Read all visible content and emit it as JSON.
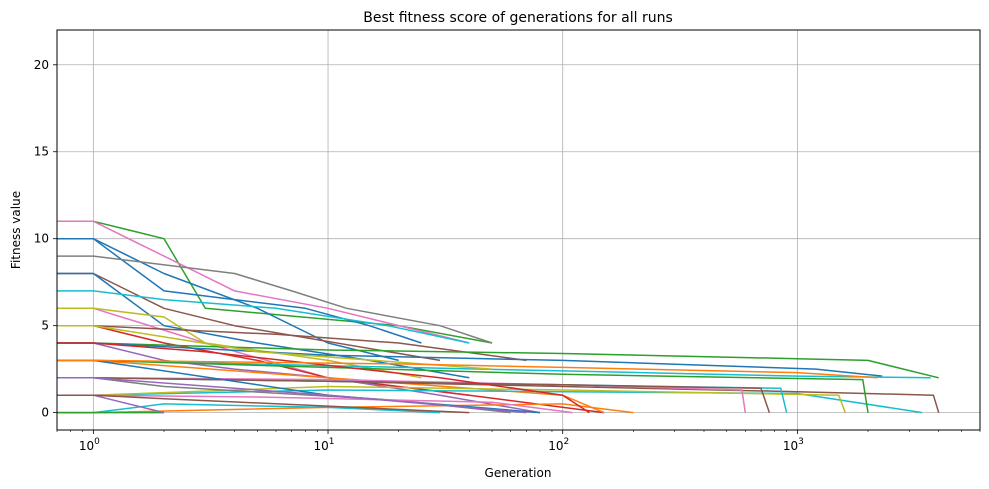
{
  "chart_data": {
    "type": "line",
    "title": "Best fitness score of generations for all runs",
    "xlabel": "Generation",
    "ylabel": "Fitness value",
    "xscale": "log",
    "xlim": [
      0.7,
      6000
    ],
    "ylim": [
      -1,
      22
    ],
    "x_ticks": [
      {
        "value": 1,
        "base": "10",
        "exp": "0"
      },
      {
        "value": 10,
        "base": "10",
        "exp": "1"
      },
      {
        "value": 100,
        "base": "10",
        "exp": "2"
      },
      {
        "value": 1000,
        "base": "10",
        "exp": "3"
      }
    ],
    "y_ticks": [
      0,
      5,
      10,
      15,
      20
    ],
    "grid": true,
    "series": [
      {
        "color": "#2ca02c",
        "x": [
          0.7,
          1,
          2,
          3,
          20,
          50
        ],
        "y": [
          11,
          11,
          10,
          6,
          5,
          4
        ]
      },
      {
        "color": "#e377c2",
        "x": [
          0.7,
          1,
          2,
          4,
          10,
          40
        ],
        "y": [
          11,
          11,
          9,
          7,
          6,
          4
        ]
      },
      {
        "color": "#1f77b4",
        "x": [
          0.7,
          1,
          2,
          5,
          10,
          20
        ],
        "y": [
          10,
          10,
          8,
          6,
          4,
          3
        ]
      },
      {
        "color": "#1f77b4",
        "x": [
          0.7,
          1,
          2,
          4,
          8,
          15,
          25
        ],
        "y": [
          10,
          10,
          7,
          6.5,
          6,
          5,
          4
        ]
      },
      {
        "color": "#7f7f7f",
        "x": [
          0.7,
          1,
          4,
          7,
          12,
          30,
          50
        ],
        "y": [
          9,
          9,
          8,
          7,
          6,
          5,
          4
        ]
      },
      {
        "color": "#8c564b",
        "x": [
          0.7,
          1,
          2,
          4,
          30
        ],
        "y": [
          8,
          8,
          6,
          5,
          3
        ]
      },
      {
        "color": "#1f77b4",
        "x": [
          0.7,
          1,
          2,
          5,
          15,
          40
        ],
        "y": [
          8,
          8,
          5,
          4,
          3,
          2
        ]
      },
      {
        "color": "#17becf",
        "x": [
          0.7,
          1,
          2,
          6,
          18,
          40
        ],
        "y": [
          7,
          7,
          6.5,
          6,
          5,
          4
        ]
      },
      {
        "color": "#e377c2",
        "x": [
          0.7,
          1,
          3,
          10,
          40
        ],
        "y": [
          6,
          6,
          4,
          2,
          1
        ]
      },
      {
        "color": "#bcbd22",
        "x": [
          0.7,
          1,
          2,
          3,
          10,
          25
        ],
        "y": [
          6,
          6,
          5.5,
          4,
          3,
          2
        ]
      },
      {
        "color": "#d62728",
        "x": [
          0.7,
          1,
          2,
          5,
          10,
          40,
          150
        ],
        "y": [
          5,
          5,
          4,
          3,
          2,
          1,
          0
        ]
      },
      {
        "color": "#8c564b",
        "x": [
          0.7,
          1,
          2,
          6,
          20,
          70
        ],
        "y": [
          5,
          5,
          4.8,
          4.5,
          4,
          3
        ]
      },
      {
        "color": "#9467bd",
        "x": [
          0.7,
          1,
          2,
          4,
          10,
          30,
          80
        ],
        "y": [
          4,
          4,
          3,
          2.5,
          2,
          1,
          0
        ]
      },
      {
        "color": "#2ca02c",
        "x": [
          0.7,
          1,
          10,
          100,
          1000,
          2000,
          4000
        ],
        "y": [
          4,
          4,
          3.6,
          3.4,
          3.1,
          3,
          2
        ]
      },
      {
        "color": "#1f77b4",
        "x": [
          0.7,
          1,
          10,
          100,
          1200,
          2300
        ],
        "y": [
          4,
          4,
          3.3,
          3,
          2.5,
          2.1
        ]
      },
      {
        "color": "#17becf",
        "x": [
          0.7,
          1,
          10,
          100,
          1000,
          3700
        ],
        "y": [
          3,
          3,
          2.7,
          2.4,
          2.1,
          2
        ]
      },
      {
        "color": "#ff7f0e",
        "x": [
          0.7,
          1,
          10,
          100,
          150
        ],
        "y": [
          3,
          3,
          2,
          1,
          0
        ]
      },
      {
        "color": "#8c564b",
        "x": [
          0.7,
          1,
          10,
          100,
          1000,
          3800,
          4000
        ],
        "y": [
          2,
          2,
          1.8,
          1.5,
          1.2,
          1,
          0
        ]
      },
      {
        "color": "#17becf",
        "x": [
          0.7,
          1,
          10,
          100,
          1000,
          3400
        ],
        "y": [
          1,
          1,
          1.3,
          1.2,
          1.1,
          0
        ]
      },
      {
        "color": "#bcbd22",
        "x": [
          0.7,
          1,
          10,
          100,
          1500,
          1600
        ],
        "y": [
          1,
          1,
          1.5,
          1.3,
          1,
          0
        ]
      },
      {
        "color": "#e377c2",
        "x": [
          0.7,
          1,
          10,
          100,
          580,
          600
        ],
        "y": [
          2,
          2,
          1.9,
          1.6,
          1.3,
          0
        ]
      },
      {
        "color": "#17becf",
        "x": [
          0.7,
          1,
          10,
          100,
          850,
          900
        ],
        "y": [
          2,
          2,
          1.8,
          1.6,
          1.4,
          0
        ]
      },
      {
        "color": "#2ca02c",
        "x": [
          0.7,
          1,
          10,
          100,
          1900,
          2000
        ],
        "y": [
          3,
          3,
          2.6,
          2.2,
          1.9,
          0
        ]
      },
      {
        "color": "#8c564b",
        "x": [
          0.7,
          1,
          10,
          100,
          700,
          760
        ],
        "y": [
          2,
          2,
          1.8,
          1.6,
          1.4,
          0
        ]
      },
      {
        "color": "#ff7f0e",
        "x": [
          0.7,
          1,
          10,
          100,
          200
        ],
        "y": [
          0,
          0,
          0.3,
          0.5,
          0
        ]
      },
      {
        "color": "#17becf",
        "x": [
          0.7,
          1,
          2,
          10,
          30
        ],
        "y": [
          0,
          0,
          0.5,
          0.3,
          0
        ]
      },
      {
        "color": "#2ca02c",
        "x": [
          0.7,
          1,
          2
        ],
        "y": [
          0,
          0,
          0
        ]
      },
      {
        "color": "#9467bd",
        "x": [
          0.7,
          1,
          2
        ],
        "y": [
          1,
          1,
          0
        ]
      },
      {
        "color": "#1f77b4",
        "x": [
          0.7,
          1,
          10,
          80
        ],
        "y": [
          3,
          3,
          1,
          0
        ]
      },
      {
        "color": "#d62728",
        "x": [
          0.7,
          1,
          3,
          30,
          100,
          130
        ],
        "y": [
          4,
          4,
          3.5,
          2,
          1,
          0
        ]
      },
      {
        "color": "#7f7f7f",
        "x": [
          0.7,
          1,
          2,
          20,
          60
        ],
        "y": [
          2,
          2,
          1.5,
          0.7,
          0
        ]
      },
      {
        "color": "#e377c2",
        "x": [
          0.7,
          1,
          5,
          50,
          110
        ],
        "y": [
          1,
          1,
          0.9,
          0.6,
          0
        ]
      },
      {
        "color": "#bcbd22",
        "x": [
          0.7,
          1,
          5,
          50
        ],
        "y": [
          5,
          5,
          3.5,
          2.5
        ]
      },
      {
        "color": "#ff7f0e",
        "x": [
          0.7,
          1,
          20,
          100,
          1000,
          2200
        ],
        "y": [
          3,
          3,
          2.8,
          2.6,
          2.3,
          2
        ]
      },
      {
        "color": "#9467bd",
        "x": [
          0.7,
          1,
          10,
          70
        ],
        "y": [
          2,
          2,
          1,
          0
        ]
      },
      {
        "color": "#8c564b",
        "x": [
          0.7,
          1,
          2,
          40
        ],
        "y": [
          1,
          1,
          0.8,
          0
        ]
      }
    ]
  }
}
